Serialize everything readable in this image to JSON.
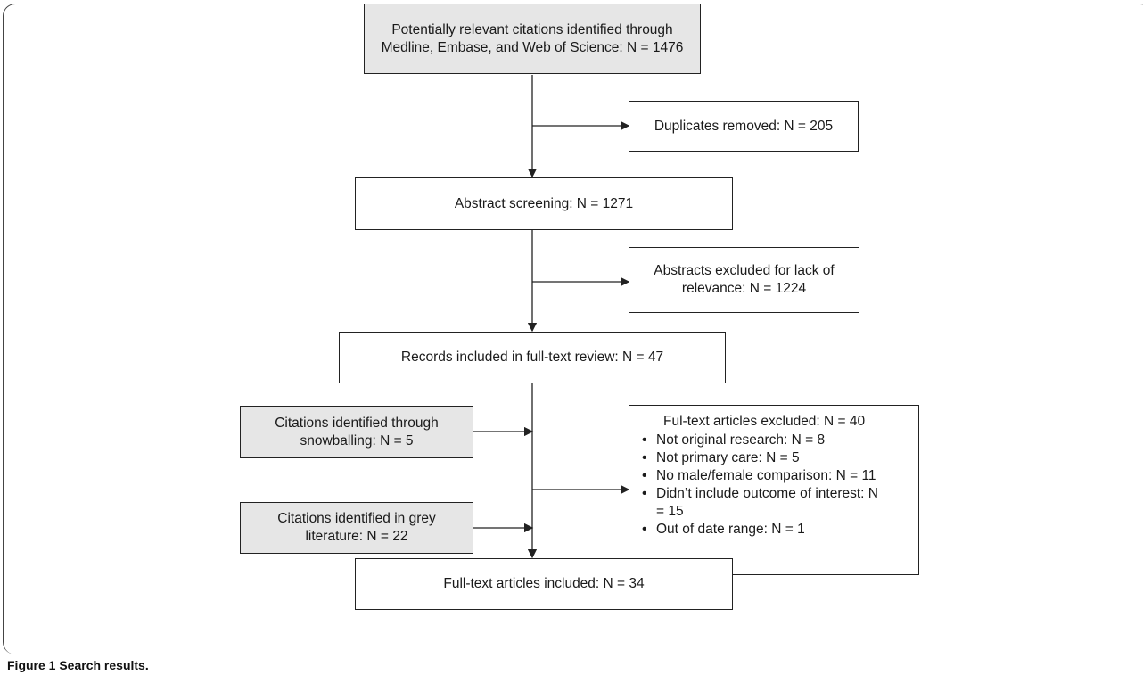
{
  "boxes": {
    "identified": [
      "Potentially relevant citations identified through",
      "Medline, Embase, and Web of Science: N = 1476"
    ],
    "duplicates": "Duplicates removed: N = 205",
    "abstract_screening": "Abstract screening: N = 1271",
    "abstracts_excluded": [
      "Abstracts excluded for lack of",
      "relevance: N = 1224"
    ],
    "fulltext_review": "Records included in full-text review: N = 47",
    "snowballing": [
      "Citations identified through",
      "snowballing: N = 5"
    ],
    "grey_literature": [
      "Citations identified in grey",
      "literature: N = 22"
    ],
    "fulltext_excluded": {
      "title": "Ful-text articles excluded: N = 40",
      "items": [
        "Not original research: N = 8",
        "Not primary care: N = 5",
        "No male/female comparison: N = 11",
        "Didn’t include outcome of interest: N",
        "Out of date range: N = 1"
      ],
      "item_continuation": "= 15"
    },
    "included": "Full-text articles included: N = 34"
  },
  "caption": "Figure 1 Search results.",
  "colors": {
    "grey_box": "#e6e6e6",
    "line": "#222222"
  }
}
